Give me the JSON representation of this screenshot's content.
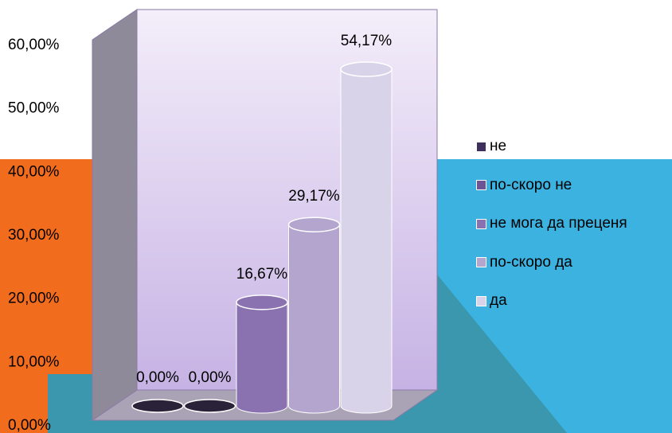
{
  "colors": {
    "orange_band": "#F26C1E",
    "blue_band": "#3BB2DF",
    "teal_band": "#3A97AD",
    "back_wall_top": "#F4EEFA",
    "back_wall_bottom": "#C6B2E4",
    "side_wall": "#8E8A9A",
    "floor": "#A9A3B5",
    "border": "#8A7BA6"
  },
  "chart_data": {
    "type": "bar",
    "style": "3d-cylinder",
    "categories": [
      "не",
      "по-скоро не",
      "не мога да преценя",
      "по-скоро да",
      "да"
    ],
    "values": [
      0.0,
      0.0,
      16.67,
      29.17,
      54.17
    ],
    "value_labels": [
      "0,00%",
      "0,00%",
      "16,67%",
      "29,17%",
      "54,17%"
    ],
    "series_colors": [
      "#3E2F5C",
      "#6F5495",
      "#8A71B0",
      "#B3A5CD",
      "#D8D3E8"
    ],
    "ylim": [
      0,
      60
    ],
    "y_ticks": [
      0,
      10,
      20,
      30,
      40,
      50,
      60
    ],
    "y_tick_labels": [
      "0,00%",
      "10,00%",
      "20,00%",
      "30,00%",
      "40,00%",
      "50,00%",
      "60,00%"
    ],
    "legend_position": "right",
    "grid": false
  }
}
